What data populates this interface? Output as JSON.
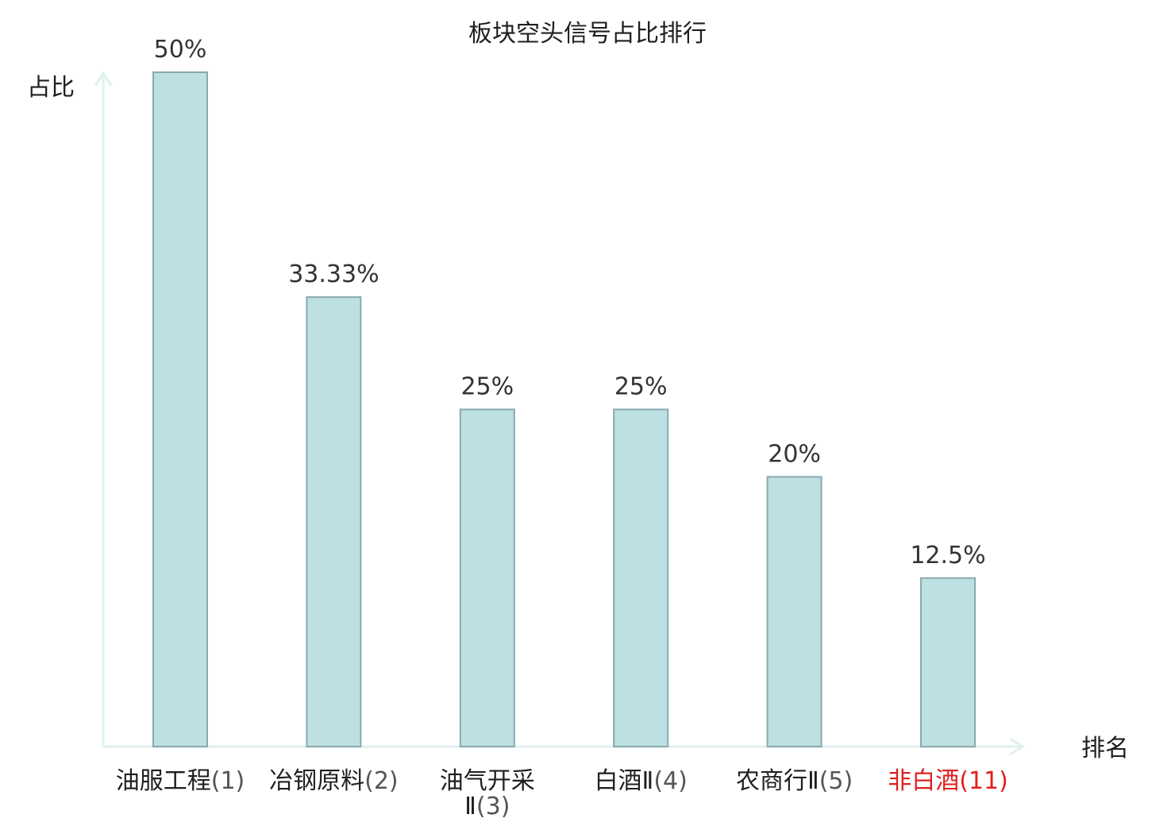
{
  "chart_data": {
    "type": "bar",
    "title": "板块空头信号占比排行",
    "xlabel": "排名",
    "ylabel": "占比",
    "ylim": [
      0,
      50
    ],
    "grid": false,
    "categories": [
      {
        "name": "油服工程",
        "rank": "(1)",
        "highlight": false
      },
      {
        "name": "冶钢原料",
        "rank": "(2)",
        "highlight": false
      },
      {
        "name": "油气开采Ⅱ",
        "rank": "(3)",
        "highlight": false
      },
      {
        "name": "白酒Ⅱ",
        "rank": "(4)",
        "highlight": false
      },
      {
        "name": "农商行Ⅱ",
        "rank": "(5)",
        "highlight": false
      },
      {
        "name": "非白酒",
        "rank": "(11)",
        "highlight": true
      }
    ],
    "values": [
      50,
      33.33,
      25,
      25,
      20,
      12.5
    ],
    "value_labels": [
      "50%",
      "33.33%",
      "25%",
      "25%",
      "20%",
      "12.5%"
    ],
    "colors": {
      "bar_fill": "#bde0e3",
      "bar_stroke": "#8aa9ad",
      "axis": "#dff1ef",
      "highlight_label": "#e02020",
      "name_label": "#1f1f1f",
      "rank_label": "#555555"
    }
  }
}
